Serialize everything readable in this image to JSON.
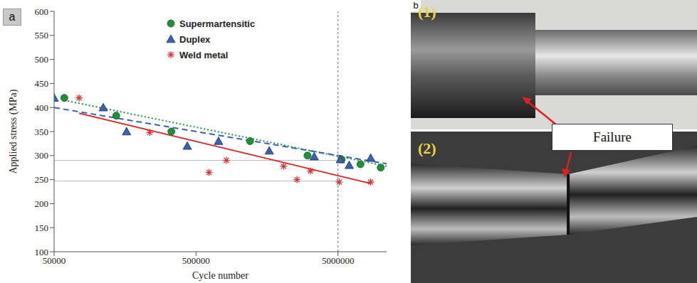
{
  "chart_data": {
    "type": "scatter",
    "annotations": [
      "a"
    ],
    "x_label": "Cycle number",
    "y_label": "Applied stress (MPa)",
    "log": "x",
    "xlim": [
      50000,
      11000000
    ],
    "xticks": [
      50000,
      500000,
      5000000
    ],
    "ylim": [
      100,
      600
    ],
    "yticks": [
      100,
      150,
      200,
      250,
      300,
      350,
      400,
      450,
      500,
      550,
      600
    ],
    "grid": false,
    "legend": "top",
    "reference_lines": {
      "x": [
        5000000
      ],
      "y": [
        290,
        247
      ]
    },
    "series": [
      {
        "name": "Supermartensitic",
        "color": "#1f8f3a",
        "marker": "circle",
        "line_style": "dotted",
        "x": [
          59000,
          137000,
          335000,
          1200000,
          3050000,
          5300000,
          7200000,
          10000000
        ],
        "values": [
          420,
          383,
          350,
          330,
          300,
          292,
          282,
          275
        ],
        "trend": {
          "x": [
            59000,
            11000000
          ],
          "values": [
            415,
            278
          ]
        }
      },
      {
        "name": "Duplex",
        "color": "#3a62b0",
        "marker": "triangle",
        "line_style": "dashed",
        "x": [
          50000,
          111000,
          162000,
          434000,
          720000,
          1640000,
          3400000,
          5200000,
          6000000,
          8500000
        ],
        "values": [
          420,
          400,
          350,
          320,
          330,
          310,
          298,
          292,
          280,
          295
        ],
        "trend": {
          "x": [
            50000,
            11000000
          ],
          "values": [
            400,
            283
          ]
        }
      },
      {
        "name": "Weld metal",
        "color": "#d03434",
        "marker": "asterisk",
        "line_style": "solid",
        "x": [
          75000,
          236000,
          617000,
          818000,
          2070000,
          2570000,
          3200000,
          5100000,
          8500000
        ],
        "values": [
          420,
          348,
          265,
          290,
          278,
          250,
          268,
          245,
          245
        ],
        "trend": {
          "x": [
            75000,
            8500000
          ],
          "values": [
            388,
            242
          ]
        }
      }
    ]
  },
  "image_panel": {
    "label": "b",
    "images": [
      {
        "label": "(1)"
      },
      {
        "label": "(2)"
      }
    ],
    "annotation": "Failure"
  }
}
